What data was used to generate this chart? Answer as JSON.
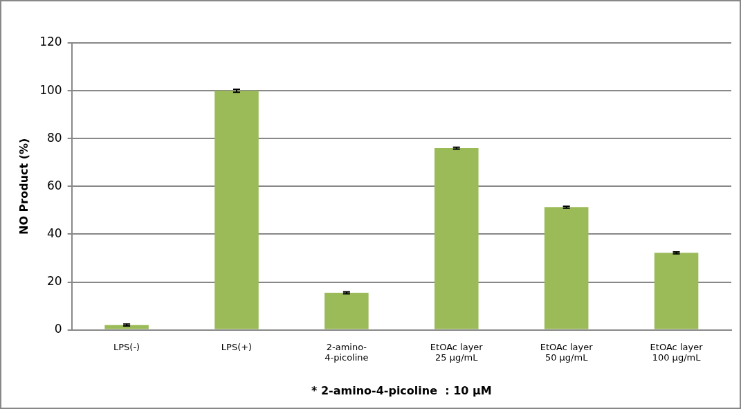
{
  "chart_data": {
    "type": "bar",
    "ylabel": "NO Product (%)",
    "xlabel": "* 2-amino-4-picoline  : 10 μM",
    "categories": [
      "LPS(-)",
      "LPS(+)",
      "2-amino-\n4-picoline",
      "EtOAc layer\n25 μg/mL",
      "EtOAc layer\n50 μg/mL",
      "EtOAc layer\n100 μg/mL"
    ],
    "values": [
      2,
      100,
      15.5,
      76,
      51.3,
      32.2
    ],
    "errors": [
      0.4,
      0.6,
      0.4,
      0.4,
      0.4,
      0.4
    ],
    "color": "#9bbb59",
    "ylim": [
      0,
      120
    ],
    "yticks": [
      0,
      20,
      40,
      60,
      80,
      100,
      120
    ],
    "grid": "y",
    "legend": false
  }
}
